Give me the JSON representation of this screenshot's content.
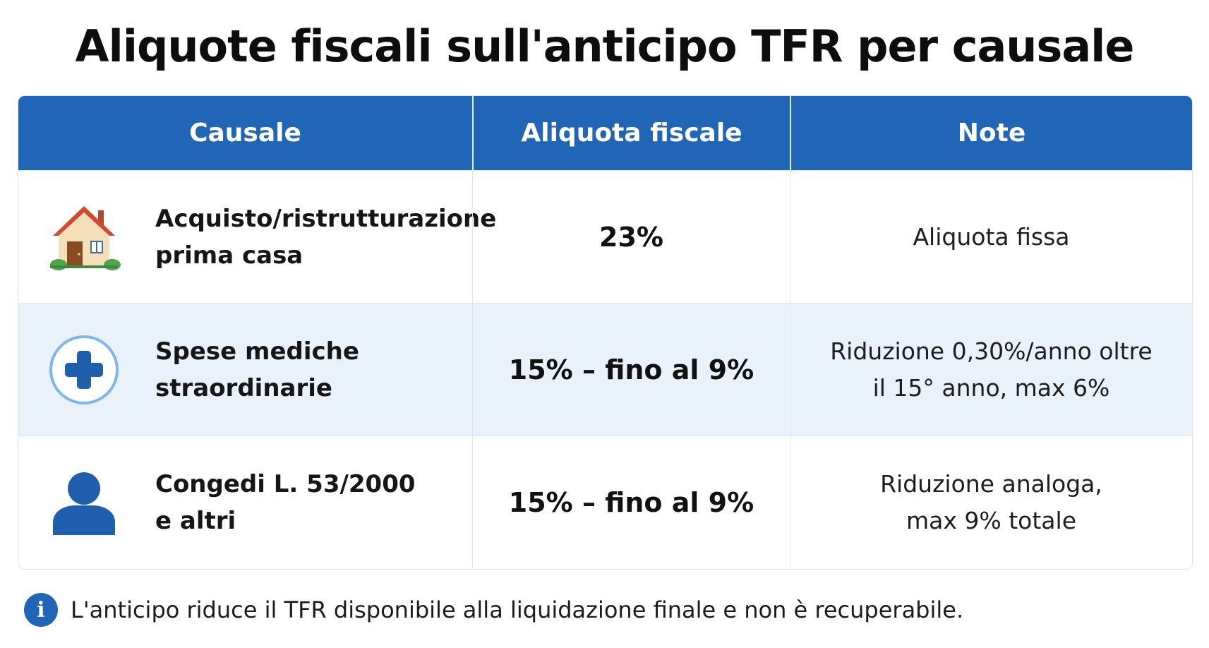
{
  "title": "Aliquote fiscali sull'anticipo TFR per causale",
  "table": {
    "headers": [
      "Causale",
      "Aliquota fiscale",
      "Note"
    ],
    "rows": [
      {
        "icon": "house-icon",
        "causale": "Acquisto/ristrutturazione\nprima casa",
        "aliquota": "23%",
        "note": "Aliquota fissa"
      },
      {
        "icon": "medical-cross-icon",
        "causale": "Spese mediche\nstraordinarie",
        "aliquota": "15% – fino al 9%",
        "note": "Riduzione 0,30%/anno oltre\nil 15° anno, max 6%"
      },
      {
        "icon": "person-icon",
        "causale": "Congedi L. 53/2000\ne altri",
        "aliquota": "15% – fino al 9%",
        "note": "Riduzione analoga,\nmax 9% totale"
      }
    ]
  },
  "footer": {
    "icon": "info-icon",
    "icon_glyph": "i",
    "text": "L'anticipo riduce il TFR disponibile alla liquidazione finale e non è recuperabile."
  },
  "colors": {
    "header_bg": "#2165b6",
    "alt_row_bg": "#e9f2fb",
    "border": "#e1e7ef",
    "icon_blue": "#1f5fae"
  }
}
